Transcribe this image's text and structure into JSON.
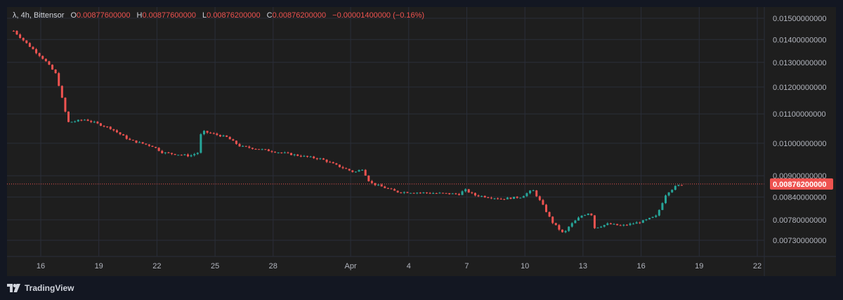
{
  "legend": {
    "symbol": "λ, 4h, Bittensor",
    "open_key": "O",
    "open_val": "0.00877600000",
    "high_key": "H",
    "high_val": "0.00877600000",
    "low_key": "L",
    "low_val": "0.00876200000",
    "close_key": "C",
    "close_val": "0.00876200000",
    "change": "−0.00001400000 (−0.16%)"
  },
  "colors": {
    "up": "#26a69a",
    "down": "#ef5350",
    "background": "#1e1e1e",
    "grid": "#2a2e39"
  },
  "footer": {
    "brand": "TradingView"
  },
  "chart_data": {
    "type": "candlestick",
    "title": "λ, 4h, Bittensor",
    "last_price": 0.008762,
    "last_price_label": "0.00876200000",
    "y_ticks": [
      0.015,
      0.014,
      0.013,
      0.012,
      0.011,
      0.01,
      0.009,
      0.0084,
      0.0078,
      0.0073
    ],
    "y_tick_labels": [
      "0.01500000000",
      "0.01400000000",
      "0.01300000000",
      "0.01200000000",
      "0.01100000000",
      "0.01000000000",
      "0.00900000000",
      "0.00840000000",
      "0.00780000000",
      "0.00730000000"
    ],
    "x_labels": [
      {
        "day": 16,
        "label": "16"
      },
      {
        "day": 19,
        "label": "19"
      },
      {
        "day": 22,
        "label": "22"
      },
      {
        "day": 25,
        "label": "25"
      },
      {
        "day": 28,
        "label": "28"
      },
      {
        "day": 32,
        "label": "Apr"
      },
      {
        "day": 35,
        "label": "4"
      },
      {
        "day": 38,
        "label": "7"
      },
      {
        "day": 41,
        "label": "10"
      },
      {
        "day": 44,
        "label": "13"
      },
      {
        "day": 47,
        "label": "16"
      },
      {
        "day": 50,
        "label": "19"
      },
      {
        "day": 53,
        "label": "22"
      }
    ],
    "x_range": [
      14.6,
      54.0
    ],
    "y_scale": "log",
    "grid": true,
    "anchor_points": [
      [
        14.6,
        0.0144
      ],
      [
        15.3,
        0.0138
      ],
      [
        16.2,
        0.0131
      ],
      [
        16.8,
        0.0125
      ],
      [
        17.4,
        0.0107
      ],
      [
        18.3,
        0.0108
      ],
      [
        19.6,
        0.0105
      ],
      [
        20.6,
        0.0101
      ],
      [
        21.8,
        0.0099
      ],
      [
        22.3,
        0.0097
      ],
      [
        23.7,
        0.0096
      ],
      [
        24.1,
        0.0097
      ],
      [
        24.3,
        0.0104
      ],
      [
        25.6,
        0.0102
      ],
      [
        26.3,
        0.0099
      ],
      [
        27.4,
        0.0098
      ],
      [
        28.4,
        0.0097
      ],
      [
        29.4,
        0.0096
      ],
      [
        30.5,
        0.0095
      ],
      [
        31.3,
        0.0093
      ],
      [
        32.2,
        0.0091
      ],
      [
        32.6,
        0.0092
      ],
      [
        33.0,
        0.0088
      ],
      [
        34.4,
        0.00854
      ],
      [
        35.6,
        0.00852
      ],
      [
        37.6,
        0.00848
      ],
      [
        37.9,
        0.0086
      ],
      [
        38.4,
        0.00845
      ],
      [
        39.8,
        0.00835
      ],
      [
        40.8,
        0.0084
      ],
      [
        41.4,
        0.0086
      ],
      [
        41.9,
        0.0082
      ],
      [
        42.4,
        0.00775
      ],
      [
        43.0,
        0.00745
      ],
      [
        43.3,
        0.00765
      ],
      [
        43.9,
        0.0079
      ],
      [
        44.4,
        0.008
      ],
      [
        44.6,
        0.0076
      ],
      [
        45.3,
        0.0077
      ],
      [
        46.0,
        0.00765
      ],
      [
        47.0,
        0.00775
      ],
      [
        47.8,
        0.0079
      ],
      [
        48.3,
        0.0085
      ],
      [
        48.8,
        0.0087
      ],
      [
        49.2,
        0.00876
      ]
    ]
  }
}
